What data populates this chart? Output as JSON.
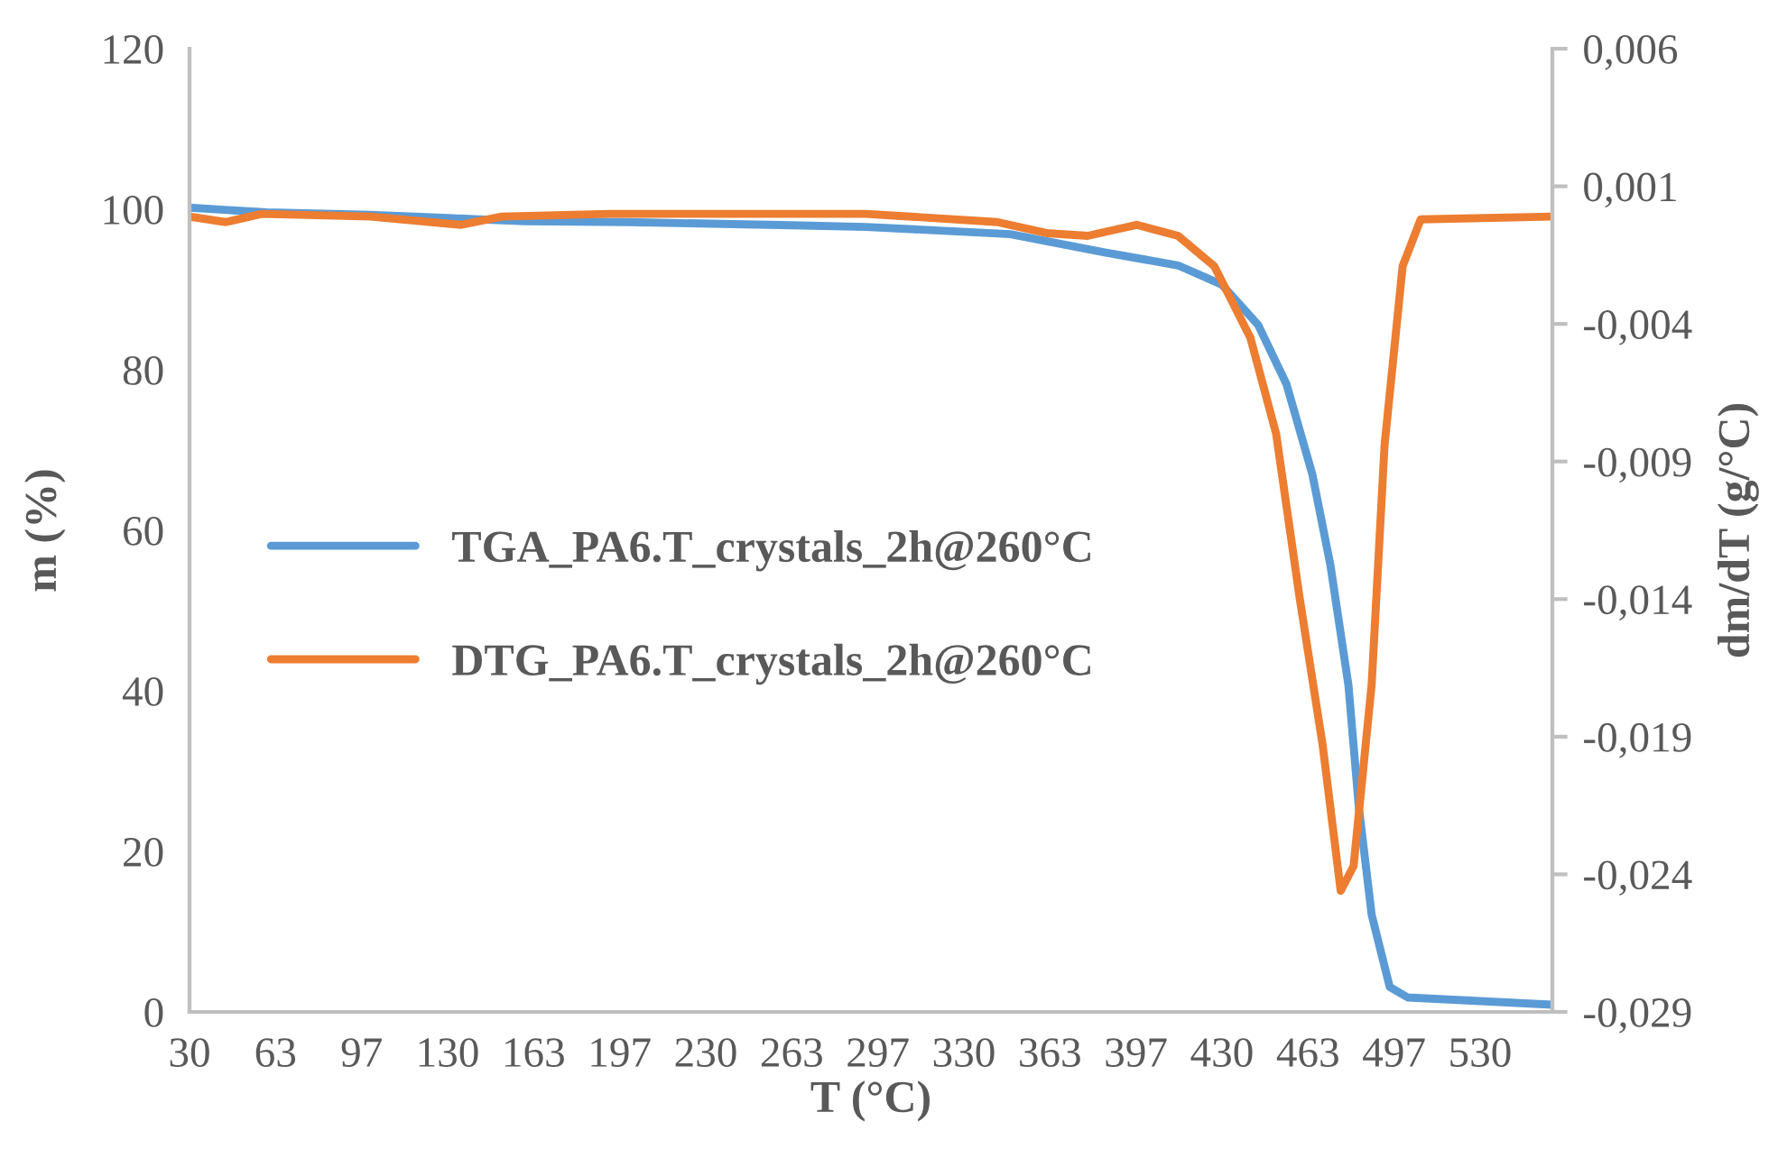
{
  "chart_data": {
    "type": "line",
    "xlabel": "T (°C)",
    "ylabel": "m (%)",
    "y2label": "dm/dT (g/°C)",
    "xlim": [
      30,
      558
    ],
    "xticks": [
      30,
      {
        "value": 63.33,
        "label": "63"
      },
      {
        "value": 96.67,
        "label": "97"
      },
      {
        "value": 130,
        "label": "130"
      },
      {
        "value": 163.33,
        "label": "163"
      },
      {
        "value": 196.67,
        "label": "197"
      },
      {
        "value": 230,
        "label": "230"
      },
      {
        "value": 263.33,
        "label": "263"
      },
      {
        "value": 296.67,
        "label": "297"
      },
      {
        "value": 330,
        "label": "330"
      },
      {
        "value": 363.33,
        "label": "363"
      },
      {
        "value": 396.67,
        "label": "397"
      },
      {
        "value": 430,
        "label": "430"
      },
      {
        "value": 463.33,
        "label": "463"
      },
      {
        "value": 496.67,
        "label": "497"
      },
      {
        "value": 530,
        "label": "530"
      }
    ],
    "ylim": [
      0,
      120
    ],
    "yticks": [
      0,
      20,
      40,
      60,
      80,
      100,
      120
    ],
    "y2lim": [
      -0.029,
      0.006
    ],
    "y2ticks": [
      {
        "value": -0.029,
        "label": "-0,029"
      },
      {
        "value": -0.024,
        "label": "-0,024"
      },
      {
        "value": -0.019,
        "label": "-0,019"
      },
      {
        "value": -0.014,
        "label": "-0,014"
      },
      {
        "value": -0.009,
        "label": "-0,009"
      },
      {
        "value": -0.004,
        "label": "-0,004"
      },
      {
        "value": 0.001,
        "label": "0,001"
      },
      {
        "value": 0.006,
        "label": "0,006"
      }
    ],
    "grid": false,
    "legend": "left",
    "marker": "none",
    "line_style": "solid",
    "series": [
      {
        "name": "TGA_PA6.T_crystals_2h@260°C",
        "color": "#5b9bd5",
        "x": [
          30,
          60,
          100,
          130,
          160,
          200,
          263,
          292,
          348,
          385,
          413,
          430,
          444,
          455,
          465,
          472,
          479,
          483,
          488,
          495,
          502,
          558
        ],
        "values": [
          100.2,
          99.6,
          99.3,
          98.9,
          98.5,
          98.4,
          98.0,
          97.8,
          96.9,
          94.6,
          93.0,
          90.6,
          85.6,
          78.2,
          67.0,
          55.7,
          40.7,
          25.6,
          12.1,
          3.1,
          1.8,
          0.9
        ]
      },
      {
        "name": "DTG_PA6.T_crystals_2h@260°C",
        "color": "#ed7d31",
        "axis": "y2",
        "x": [
          30,
          44,
          58,
          100,
          135,
          151,
          193,
          292,
          343,
          362,
          378,
          397,
          413,
          427,
          441,
          451,
          460,
          469,
          476,
          481,
          488,
          493,
          500,
          507,
          558
        ],
        "values": [
          -0.0001,
          -0.0003,
          0.0,
          -0.0001,
          -0.0004,
          -0.0001,
          0.0,
          0.0,
          -0.0003,
          -0.0007,
          -0.0008,
          -0.0004,
          -0.0008,
          -0.0019,
          -0.0045,
          -0.008,
          -0.0139,
          -0.0193,
          -0.0246,
          -0.0237,
          -0.0171,
          -0.0084,
          -0.0019,
          -0.0002,
          -0.0001
        ]
      }
    ]
  }
}
